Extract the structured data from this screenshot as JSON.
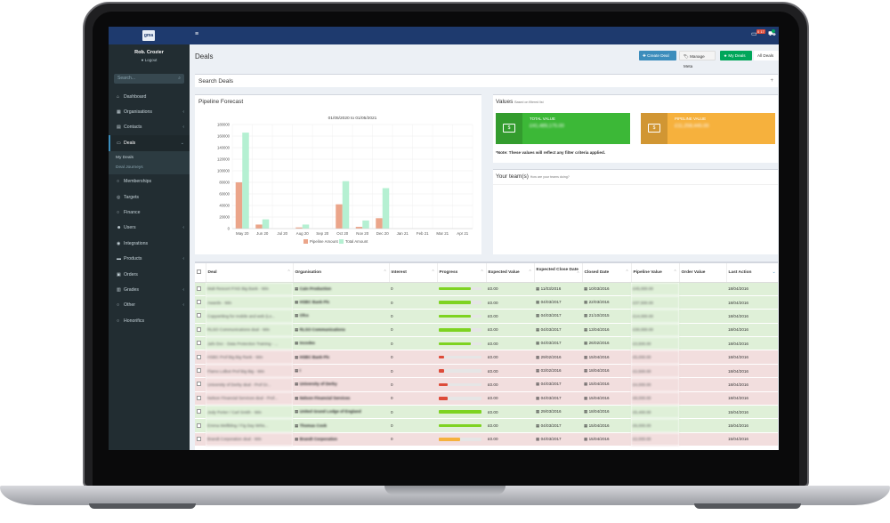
{
  "user": {
    "name": "Rob. Crozier",
    "logout": "Logout"
  },
  "logo": "gma",
  "sidebar": {
    "search_placeholder": "Search...",
    "items": [
      {
        "label": "Dashboard",
        "icon": "home-icon",
        "glyph": "⌂",
        "chevron": ""
      },
      {
        "label": "Organisations",
        "icon": "building-icon",
        "glyph": "▦",
        "chevron": "‹"
      },
      {
        "label": "Contacts",
        "icon": "contacts-icon",
        "glyph": "▤",
        "chevron": "‹"
      },
      {
        "label": "Deals",
        "icon": "deals-icon",
        "glyph": "▭",
        "chevron": "⌄"
      }
    ],
    "deals_sub": [
      "My Deals",
      "Deal Journeys"
    ],
    "items2": [
      {
        "label": "Memberships",
        "icon": "circle-icon",
        "glyph": "○",
        "chevron": ""
      },
      {
        "label": "Targets",
        "icon": "target-icon",
        "glyph": "◎",
        "chevron": ""
      },
      {
        "label": "Finance",
        "icon": "circle-icon",
        "glyph": "○",
        "chevron": ""
      },
      {
        "label": "Users",
        "icon": "users-icon",
        "glyph": "☻",
        "chevron": "‹"
      },
      {
        "label": "Integrations",
        "icon": "integrations-icon",
        "glyph": "◉",
        "chevron": ""
      },
      {
        "label": "Products",
        "icon": "products-icon",
        "glyph": "▬",
        "chevron": "‹"
      },
      {
        "label": "Orders",
        "icon": "orders-icon",
        "glyph": "▣",
        "chevron": ""
      },
      {
        "label": "Grades",
        "icon": "grades-icon",
        "glyph": "▥",
        "chevron": "‹"
      },
      {
        "label": "Other",
        "icon": "circle-icon",
        "glyph": "○",
        "chevron": "‹"
      },
      {
        "label": "Honorifics",
        "icon": "circle-icon",
        "glyph": "○",
        "chevron": ""
      }
    ]
  },
  "topbar": {
    "notif_count": "0 17"
  },
  "header": {
    "title": "Deals",
    "create": "✚ Create Deal",
    "meta": "🏷 Manage Meta",
    "my": "★ My Deals",
    "all": "All Deals"
  },
  "search_deals": {
    "title": "Search Deals",
    "plus": "+"
  },
  "forecast": {
    "title": "Pipeline Forecast"
  },
  "chart_data": {
    "type": "bar",
    "title": "01/05/2020 to 01/05/2021",
    "categories": [
      "May 20",
      "Jun 20",
      "Jul 20",
      "Aug 20",
      "Sep 20",
      "Oct 20",
      "Nov 20",
      "Dec 20",
      "Jan 21",
      "Feb 21",
      "Mar 21",
      "Apr 21"
    ],
    "series": [
      {
        "name": "Pipeline Amount",
        "color": "#eba58a",
        "values": [
          80000,
          7000,
          0,
          2000,
          0,
          42000,
          3000,
          18000,
          0,
          0,
          0,
          0
        ]
      },
      {
        "name": "Total Amount",
        "color": "#b5f0d2",
        "values": [
          166000,
          16000,
          0,
          7000,
          0,
          82000,
          14000,
          70000,
          0,
          0,
          0,
          0
        ]
      }
    ],
    "yticks": [
      "0",
      "20000",
      "40000",
      "60000",
      "80000",
      "100000",
      "120000",
      "140000",
      "160000",
      "180000"
    ],
    "ylim": [
      0,
      180000
    ],
    "legend": "bottom"
  },
  "values": {
    "title": "Values",
    "subtitle": "Based on filtered list",
    "total_label": "TOTAL VALUE",
    "total_value": "£41,489,175.00",
    "pipeline_label": "PIPELINE VALUE",
    "pipeline_value": "£11,258,445.00",
    "note": "*Note: These values will reflect any filter criteria applied."
  },
  "team": {
    "title": "Your team(s)",
    "subtitle": "How are your teams doing?"
  },
  "table": {
    "headers": [
      "Deal",
      "Organisation",
      "Interest",
      "Progress",
      "Expected Value",
      "Expected Close Date",
      "Closed Date",
      "Pipeline Value",
      "Order Value",
      "Last Action"
    ],
    "rows": [
      {
        "status": "green",
        "deal": "Malt Rescert P.NS Big Bank - Win",
        "org": "Cain Production",
        "interest": "0",
        "progress": 75,
        "pcolor": "#7ed321",
        "ev": "£0.00",
        "ecd": "11/03/2016",
        "cd": "10/03/2016",
        "pv": "£45,000.00",
        "ov": "",
        "la": "18/04/2016"
      },
      {
        "status": "green",
        "deal": "Awards - Win",
        "org": "HSBC Bank Plc",
        "interest": "0",
        "progress": 75,
        "pcolor": "#7ed321",
        "ev": "£0.00",
        "ecd": "04/03/2017",
        "cd": "22/03/2016",
        "pv": "£37,500.00",
        "ov": "",
        "la": "18/04/2016"
      },
      {
        "status": "green",
        "deal": "Copywriting for mobile and web (Lo...",
        "org": "Ofcs",
        "interest": "0",
        "progress": 75,
        "pcolor": "#7ed321",
        "ev": "£0.00",
        "ecd": "04/03/2017",
        "cd": "21/10/2015",
        "pv": "£14,000.00",
        "ov": "",
        "la": "18/04/2016"
      },
      {
        "status": "green",
        "deal": "RLSO Communications deal - Win",
        "org": "RLSO Communications",
        "interest": "0",
        "progress": 75,
        "pcolor": "#7ed321",
        "ev": "£0.00",
        "ecd": "04/03/2017",
        "cd": "13/04/2016",
        "pv": "£30,000.00",
        "ov": "",
        "la": "18/04/2016"
      },
      {
        "status": "green",
        "deal": "Jafo Doc - Data Protection Training - ...",
        "org": "Incodes",
        "interest": "0",
        "progress": 75,
        "pcolor": "#7ed321",
        "ev": "£0.00",
        "ecd": "04/03/2017",
        "cd": "26/02/2016",
        "pv": "£3,500.00",
        "ov": "",
        "la": "18/04/2016"
      },
      {
        "status": "red",
        "deal": "HSBC Prof Big Big Rank - Win",
        "org": "HSBC Bank Plc",
        "interest": "0",
        "progress": 12,
        "pcolor": "#dd4b39",
        "ev": "£0.00",
        "ecd": "29/02/2016",
        "cd": "15/04/2016",
        "pv": "£5,000.00",
        "ov": "",
        "la": "18/04/2016"
      },
      {
        "status": "red",
        "deal": "Flamo Lolbot Prof Big Big - Win",
        "org": "I",
        "interest": "0",
        "progress": 12,
        "pcolor": "#dd4b39",
        "ev": "£0.00",
        "ecd": "03/02/2016",
        "cd": "18/04/2016",
        "pv": "£2,500.00",
        "ov": "",
        "la": "18/04/2016"
      },
      {
        "status": "red",
        "deal": "University of Derby deal - Prof Gr...",
        "org": "University of Derby",
        "interest": "0",
        "progress": 20,
        "pcolor": "#dd4b39",
        "ev": "£0.00",
        "ecd": "04/03/2017",
        "cd": "15/04/2016",
        "pv": "£4,000.00",
        "ov": "",
        "la": "18/04/2016"
      },
      {
        "status": "red",
        "deal": "Nelson Financial Services deal - Prof...",
        "org": "Nelson Financial Services",
        "interest": "0",
        "progress": 20,
        "pcolor": "#dd4b39",
        "ev": "£0.00",
        "ecd": "04/03/2017",
        "cd": "15/04/2016",
        "pv": "£8,000.00",
        "ov": "",
        "la": "18/04/2016"
      },
      {
        "status": "green",
        "deal": "Jody Porter / Carl Smith - Win",
        "org": "United Grand Lodge of England",
        "interest": "0",
        "progress": 100,
        "pcolor": "#7ed321",
        "ev": "£0.00",
        "ecd": "29/03/2016",
        "cd": "18/04/2016",
        "pv": "£5,400.00",
        "ov": "",
        "la": "15/04/2016"
      },
      {
        "status": "green",
        "deal": "Emma Wellbling / Fig Day Wrks...",
        "org": "Thomas Cook",
        "interest": "0",
        "progress": 100,
        "pcolor": "#7ed321",
        "ev": "£0.00",
        "ecd": "04/03/2017",
        "cd": "15/04/2016",
        "pv": "£6,000.00",
        "ov": "",
        "la": "15/04/2016"
      },
      {
        "status": "red",
        "deal": "Brandt Corporation deal - Win",
        "org": "Brandt Corporation",
        "interest": "0",
        "progress": 50,
        "pcolor": "#f6b13d",
        "ev": "£0.00",
        "ecd": "04/03/2017",
        "cd": "15/04/2016",
        "pv": "£2,000.00",
        "ov": "",
        "la": "15/04/2016"
      }
    ]
  }
}
